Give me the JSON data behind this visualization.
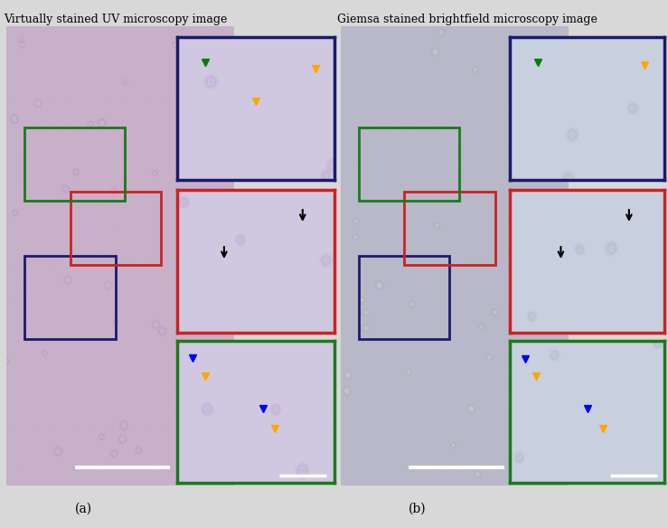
{
  "title_left": "Virtually stained UV microscopy image",
  "title_right": "Giemsa stained brightfield microscopy image",
  "label_a": "(a)",
  "label_b": "(b)",
  "box_colors": {
    "blue": "#1a1a6e",
    "red": "#cc2222",
    "green": "#1a7a1a"
  },
  "figsize": [
    7.39,
    5.84
  ],
  "dpi": 100
}
